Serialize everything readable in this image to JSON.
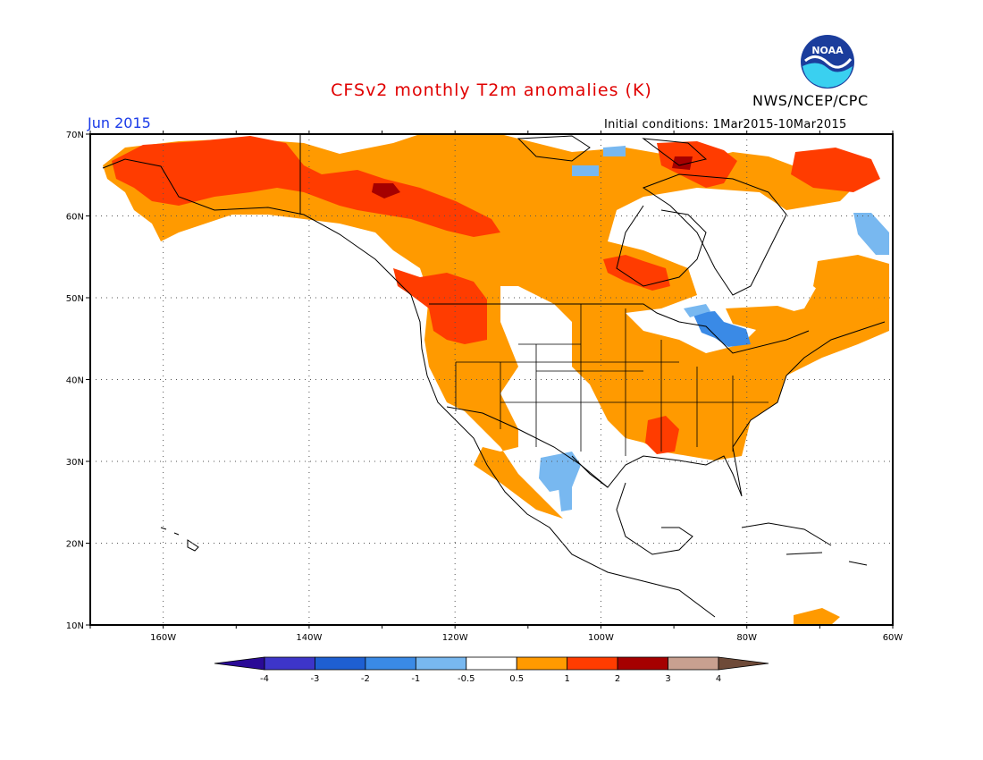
{
  "title": "CFSv2 monthly T2m anomalies (K)",
  "brand": "NWS/NCEP/CPC",
  "logo_text": "NOAA",
  "period": "Jun 2015",
  "initial_conditions": "Initial conditions: 1Mar2015-10Mar2015",
  "map": {
    "projection": "lat-lon",
    "lon_range": [
      -170,
      -60
    ],
    "lat_range": [
      10,
      70
    ],
    "lat_ticks": [
      "10N",
      "20N",
      "30N",
      "40N",
      "50N",
      "60N",
      "70N"
    ],
    "lon_ticks": [
      "160W",
      "140W",
      "120W",
      "100W",
      "80W",
      "60W"
    ],
    "grid": "dotted"
  },
  "legend": {
    "labels": [
      "-4",
      "-3",
      "-2",
      "-1",
      "-0.5",
      "0.5",
      "1",
      "2",
      "3",
      "4"
    ],
    "colors": [
      "#2a0a96",
      "#3d35c9",
      "#1e5fd2",
      "#3a8ae6",
      "#78b8f0",
      "#ffffff",
      "#ff9a00",
      "#ff3c00",
      "#a50000",
      "#c8a090",
      "#6e4a38"
    ]
  },
  "colors": {
    "title": "#e00000",
    "period": "#1a3ae8",
    "warm1": "#ff9a00",
    "warm2": "#ff3c00",
    "warm3": "#a50000",
    "cool1": "#78b8f0",
    "cool2": "#3a8ae6"
  }
}
